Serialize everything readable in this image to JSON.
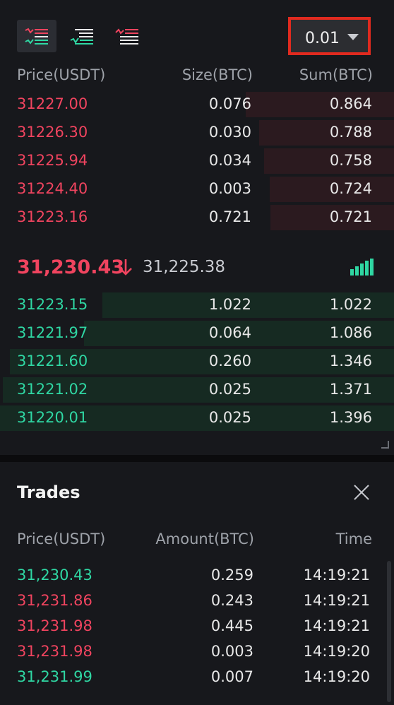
{
  "colors": {
    "ask": "#f0445f",
    "bid": "#2fd7a3",
    "highlight": "#e02a1f"
  },
  "toolbar": {
    "views": [
      {
        "icon": "orderbook-both-icon",
        "active": true
      },
      {
        "icon": "orderbook-bids-icon",
        "active": false
      },
      {
        "icon": "orderbook-asks-icon",
        "active": false
      }
    ],
    "precision": "0.01"
  },
  "orderbook": {
    "headers": {
      "price": "Price(USDT)",
      "size": "Size(BTC)",
      "sum": "Sum(BTC)"
    },
    "asks": [
      {
        "price": "31227.00",
        "size": "0.076",
        "sum": "0.864",
        "depth": 0.627
      },
      {
        "price": "31226.30",
        "size": "0.030",
        "sum": "0.788",
        "depth": 0.571
      },
      {
        "price": "31225.94",
        "size": "0.034",
        "sum": "0.758",
        "depth": 0.549
      },
      {
        "price": "31224.40",
        "size": "0.003",
        "sum": "0.724",
        "depth": 0.525
      },
      {
        "price": "31223.16",
        "size": "0.721",
        "sum": "0.721",
        "depth": 0.522
      }
    ],
    "last_price": "31,230.43",
    "last_direction": "down",
    "mark_price": "31,225.38",
    "bids": [
      {
        "price": "31223.15",
        "size": "1.022",
        "sum": "1.022",
        "depth": 0.74
      },
      {
        "price": "31221.97",
        "size": "0.064",
        "sum": "1.086",
        "depth": 0.787
      },
      {
        "price": "31221.60",
        "size": "0.260",
        "sum": "1.346",
        "depth": 0.975
      },
      {
        "price": "31221.02",
        "size": "0.025",
        "sum": "1.371",
        "depth": 0.993
      },
      {
        "price": "31220.01",
        "size": "0.025",
        "sum": "1.396",
        "depth": 1.0
      }
    ]
  },
  "trades": {
    "title": "Trades",
    "headers": {
      "price": "Price(USDT)",
      "amount": "Amount(BTC)",
      "time": "Time"
    },
    "rows": [
      {
        "price": "31,230.43",
        "amount": "0.259",
        "time": "14:19:21",
        "side": "buy"
      },
      {
        "price": "31,231.86",
        "amount": "0.243",
        "time": "14:19:21",
        "side": "sell"
      },
      {
        "price": "31,231.98",
        "amount": "0.445",
        "time": "14:19:21",
        "side": "sell"
      },
      {
        "price": "31,231.98",
        "amount": "0.003",
        "time": "14:19:20",
        "side": "sell"
      },
      {
        "price": "31,231.99",
        "amount": "0.007",
        "time": "14:19:20",
        "side": "buy"
      }
    ]
  }
}
